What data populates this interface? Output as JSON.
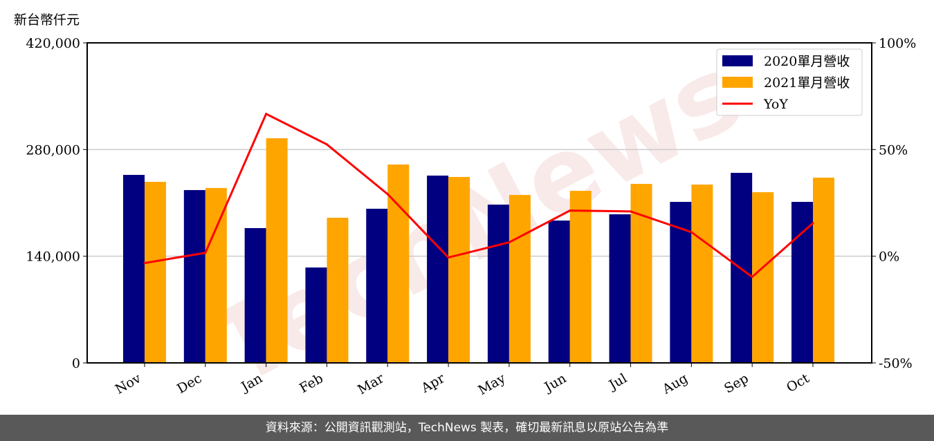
{
  "chart_data": {
    "type": "bar",
    "unit_label": "新台幣仟元",
    "categories": [
      "Nov",
      "Dec",
      "Jan",
      "Feb",
      "Mar",
      "Apr",
      "May",
      "Jun",
      "Jul",
      "Aug",
      "Sep",
      "Oct"
    ],
    "series": [
      {
        "name": "2020單月營收",
        "type": "bar",
        "axis": "left",
        "color": "#000080",
        "values": [
          246700,
          226800,
          176900,
          125200,
          202300,
          245800,
          207700,
          186800,
          195000,
          211300,
          249400,
          211300
        ]
      },
      {
        "name": "2021單月營收",
        "type": "bar",
        "axis": "left",
        "color": "#FFA500",
        "values": [
          237600,
          229500,
          294800,
          190500,
          260300,
          244000,
          220400,
          225800,
          234900,
          234000,
          224000,
          243100
        ]
      },
      {
        "name": "YoY",
        "type": "line",
        "axis": "right",
        "color": "#FF0000",
        "values": [
          -3.2,
          1.6,
          66.7,
          52.4,
          29.1,
          -0.6,
          6.5,
          21.4,
          21.0,
          11.3,
          -9.7,
          15.5
        ]
      }
    ],
    "left_axis": {
      "ylim": [
        0,
        420000
      ],
      "ticks": [
        "0",
        "140,000",
        "280,000",
        "420,000"
      ]
    },
    "right_axis": {
      "ylim": [
        -50,
        100
      ],
      "ticks": [
        "-50%",
        "0%",
        "50%",
        "100%"
      ]
    },
    "grid": "horizontal",
    "legend_position": "top-right"
  },
  "watermark": "TechNews",
  "footer": "資料來源：公開資訊觀測站，TechNews 製表，確切最新訊息以原站公告為準"
}
